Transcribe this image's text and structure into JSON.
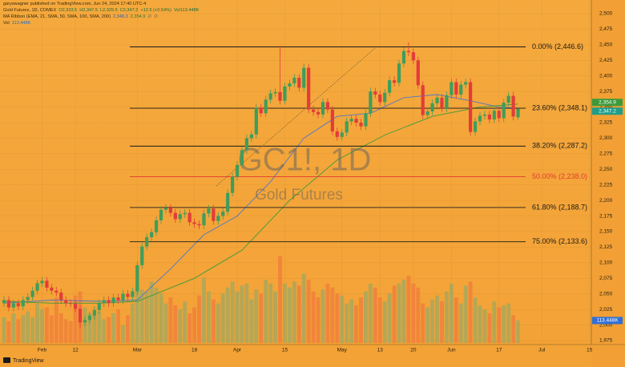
{
  "header": {
    "publisher": "garyswagner published on TradingView.com, Jun 24, 2024 17:40 UTC-4",
    "legend": [
      "Gold Futures, 1D, COMEX",
      "O2,333.5",
      "H2,347.5",
      "L2,329.5",
      "C2,347.2",
      "+12.5 (+0.54%)",
      "Vol113.448K"
    ],
    "ma_legend": [
      "MA Ribbon (EMA, 21, SMA, 50, SMA, 100, SMA, 200)",
      "2,348.3",
      "2,354.9",
      "∅",
      "∅"
    ],
    "vol_legend": [
      "Vol",
      "113.448K"
    ]
  },
  "footer": {
    "brand": "TradingView"
  },
  "chart_data": {
    "type": "candlestick",
    "watermark": "GC1!, 1D",
    "subtitle": "Gold Futures",
    "up_color": "#3f9d5c",
    "down_color": "#e23d3a",
    "open": [
      2035,
      2040,
      2028,
      2035,
      2030,
      2040,
      2045,
      2055,
      2067,
      2071,
      2060,
      2055,
      2052,
      2040,
      2035,
      2034,
      2026,
      2004,
      2008,
      2015,
      2024,
      2035,
      2040,
      2035,
      2044,
      2040,
      2050,
      2045,
      2054,
      2096,
      2126,
      2141,
      2149,
      2168,
      2185,
      2188,
      2180,
      2170,
      2178,
      2180,
      2165,
      2162,
      2160,
      2179,
      2187,
      2167,
      2175,
      2182,
      2212,
      2238,
      2257,
      2281,
      2300,
      2306,
      2349,
      2340,
      2362,
      2372,
      2374,
      2360,
      2383,
      2388,
      2397,
      2381,
      2413,
      2346,
      2342,
      2338,
      2358,
      2346,
      2311,
      2302,
      2309,
      2327,
      2331,
      2325,
      2319,
      2340,
      2375,
      2370,
      2358,
      2373,
      2393,
      2389,
      2420,
      2440,
      2438,
      2425,
      2385,
      2337,
      2343,
      2356,
      2365,
      2348,
      2369,
      2390,
      2370,
      2386,
      2390,
      2310,
      2327,
      2336,
      2338,
      2330,
      2344,
      2332,
      2357,
      2368,
      2333.5
    ],
    "high": [
      2046,
      2046,
      2041,
      2041,
      2046,
      2051,
      2061,
      2073,
      2077,
      2077,
      2066,
      2061,
      2058,
      2046,
      2041,
      2040,
      2032,
      2014,
      2021,
      2030,
      2041,
      2046,
      2046,
      2050,
      2050,
      2056,
      2056,
      2060,
      2102,
      2132,
      2147,
      2155,
      2174,
      2191,
      2194,
      2194,
      2186,
      2184,
      2186,
      2186,
      2171,
      2168,
      2185,
      2193,
      2193,
      2181,
      2188,
      2218,
      2244,
      2263,
      2287,
      2306,
      2312,
      2355,
      2355,
      2368,
      2378,
      2380,
      2448,
      2389,
      2394,
      2403,
      2403,
      2420,
      2419,
      2352,
      2348,
      2364,
      2364,
      2352,
      2317,
      2315,
      2333,
      2337,
      2337,
      2331,
      2346,
      2381,
      2381,
      2376,
      2379,
      2399,
      2399,
      2426,
      2446,
      2454,
      2444,
      2431,
      2391,
      2349,
      2362,
      2371,
      2371,
      2375,
      2396,
      2396,
      2392,
      2396,
      2396,
      2333,
      2342,
      2344,
      2344,
      2350,
      2350,
      2363,
      2374,
      2374,
      2347.5
    ],
    "low": [
      2029,
      2022,
      2022,
      2024,
      2024,
      2034,
      2039,
      2049,
      2061,
      2054,
      2049,
      2046,
      2034,
      2029,
      2028,
      2020,
      1995,
      1998,
      2002,
      2009,
      2018,
      2029,
      2029,
      2029,
      2034,
      2034,
      2039,
      2039,
      2048,
      2090,
      2120,
      2135,
      2143,
      2162,
      2179,
      2174,
      2164,
      2164,
      2172,
      2159,
      2156,
      2154,
      2154,
      2173,
      2161,
      2161,
      2169,
      2176,
      2206,
      2232,
      2251,
      2275,
      2294,
      2300,
      2334,
      2334,
      2356,
      2366,
      2354,
      2354,
      2377,
      2382,
      2375,
      2375,
      2340,
      2336,
      2332,
      2332,
      2340,
      2305,
      2296,
      2296,
      2303,
      2321,
      2319,
      2313,
      2313,
      2334,
      2364,
      2352,
      2352,
      2367,
      2383,
      2383,
      2414,
      2432,
      2419,
      2379,
      2331,
      2331,
      2337,
      2350,
      2342,
      2342,
      2363,
      2364,
      2364,
      2380,
      2304,
      2304,
      2321,
      2330,
      2324,
      2324,
      2326,
      2326,
      2351,
      2328.7,
      2329.5
    ],
    "close": [
      2040,
      2028,
      2035,
      2030,
      2040,
      2045,
      2055,
      2067,
      2071,
      2060,
      2055,
      2052,
      2040,
      2035,
      2034,
      2026,
      2004,
      2008,
      2015,
      2024,
      2035,
      2040,
      2035,
      2044,
      2040,
      2050,
      2045,
      2054,
      2096,
      2126,
      2141,
      2149,
      2168,
      2185,
      2188,
      2180,
      2170,
      2178,
      2180,
      2165,
      2162,
      2160,
      2179,
      2187,
      2167,
      2175,
      2182,
      2212,
      2238,
      2257,
      2281,
      2300,
      2306,
      2349,
      2340,
      2362,
      2372,
      2374,
      2360,
      2383,
      2388,
      2397,
      2381,
      2413,
      2346,
      2342,
      2338,
      2358,
      2346,
      2311,
      2302,
      2309,
      2327,
      2331,
      2325,
      2319,
      2340,
      2375,
      2370,
      2358,
      2373,
      2393,
      2389,
      2420,
      2440,
      2438,
      2425,
      2385,
      2337,
      2343,
      2356,
      2365,
      2348,
      2369,
      2390,
      2370,
      2386,
      2390,
      2310,
      2327,
      2336,
      2338,
      2330,
      2344,
      2332,
      2357,
      2368,
      2334.7,
      2347.2
    ],
    "volume": {
      "up_color": "#a8a85c",
      "down_color": "#f0803c",
      "lim": [
        0,
        1734
      ],
      "values": [
        130,
        110,
        150,
        120,
        140,
        160,
        130,
        200,
        170,
        180,
        140,
        230,
        150,
        120,
        110,
        240,
        260,
        180,
        150,
        140,
        160,
        120,
        130,
        150,
        170,
        90,
        140,
        200,
        300,
        270,
        260,
        310,
        280,
        250,
        200,
        230,
        190,
        170,
        210,
        150,
        180,
        240,
        330,
        260,
        220,
        200,
        250,
        280,
        310,
        260,
        290,
        300,
        220,
        270,
        250,
        320,
        300,
        260,
        440,
        300,
        280,
        310,
        290,
        350,
        320,
        260,
        230,
        270,
        300,
        280,
        250,
        240,
        200,
        220,
        190,
        230,
        260,
        300,
        280,
        230,
        210,
        250,
        290,
        300,
        320,
        340,
        300,
        280,
        200,
        180,
        220,
        240,
        210,
        260,
        300,
        230,
        200,
        290,
        310,
        230,
        190,
        170,
        150,
        210,
        180,
        190,
        200,
        140,
        113.448
      ],
      "tag": {
        "value": 113.448,
        "label": "113.448K",
        "color": "#2f6fd6"
      }
    },
    "moving_averages": [
      {
        "color": "#4f78c8",
        "x": [
          0,
          10,
          20,
          28,
          35,
          42,
          49,
          56,
          63,
          70,
          77,
          84,
          91,
          98,
          104,
          108
        ],
        "values": [
          2035,
          2040,
          2038,
          2040,
          2090,
          2145,
          2175,
          2230,
          2300,
          2335,
          2340,
          2365,
          2370,
          2360,
          2350,
          2348.3
        ]
      },
      {
        "color": "#3c9a3c",
        "x": [
          0,
          10,
          20,
          28,
          40,
          50,
          60,
          70,
          80,
          90,
          100,
          108
        ],
        "values": [
          2038,
          2035,
          2035,
          2038,
          2075,
          2120,
          2200,
          2265,
          2305,
          2335,
          2350,
          2354.9
        ]
      }
    ],
    "fibonacci": [
      {
        "value": 2446.6,
        "label": "0.00% (2,446.6)",
        "color": "#1a1a1a"
      },
      {
        "value": 2348.1,
        "label": "23.60% (2,348.1)",
        "color": "#1a1a1a"
      },
      {
        "value": 2287.2,
        "label": "38.20% (2,287.2)",
        "color": "#1a1a1a"
      },
      {
        "value": 2238.0,
        "label": "50.00% (2,238.0)",
        "color": "#e53935"
      },
      {
        "value": 2188.7,
        "label": "61.80% (2,188.7)",
        "color": "#1a1a1a"
      },
      {
        "value": 2133.6,
        "label": "75.00% (2,133.6)",
        "color": "#1a1a1a"
      }
    ],
    "price_tags": [
      {
        "value": 2354.9,
        "label": "2,354.9",
        "color": "#3c9a3c"
      },
      {
        "value": 2347.2,
        "label": "2,347.2",
        "color": "#1f9e8a"
      }
    ],
    "xlim": [
      -0.84,
      123.4
    ],
    "xticks": [
      {
        "value": 8,
        "label": "Feb"
      },
      {
        "value": 15,
        "label": "12"
      },
      {
        "value": 28,
        "label": "Mar"
      },
      {
        "value": 40,
        "label": "18"
      },
      {
        "value": 49,
        "label": "Apr"
      },
      {
        "value": 59,
        "label": "15"
      },
      {
        "value": 71,
        "label": "May"
      },
      {
        "value": 79,
        "label": "13"
      },
      {
        "value": 86,
        "label": "20"
      },
      {
        "value": 94,
        "label": "Jun"
      },
      {
        "value": 104,
        "label": "17"
      },
      {
        "value": 113,
        "label": "Jul"
      },
      {
        "value": 123,
        "label": "15"
      }
    ],
    "ylim": [
      1971.1,
      2521.9
    ],
    "yticks": [
      {
        "value": 1975,
        "label": "1,975"
      },
      {
        "value": 2000,
        "label": "2,000"
      },
      {
        "value": 2025,
        "label": "2,025"
      },
      {
        "value": 2050,
        "label": "2,050"
      },
      {
        "value": 2075,
        "label": "2,075"
      },
      {
        "value": 2100,
        "label": "2,100"
      },
      {
        "value": 2125,
        "label": "2,125"
      },
      {
        "value": 2150,
        "label": "2,150"
      },
      {
        "value": 2175,
        "label": "2,175"
      },
      {
        "value": 2200,
        "label": "2,200"
      },
      {
        "value": 2225,
        "label": "2,225"
      },
      {
        "value": 2250,
        "label": "2,250"
      },
      {
        "value": 2275,
        "label": "2,275"
      },
      {
        "value": 2300,
        "label": "2,300"
      },
      {
        "value": 2325,
        "label": "2,325"
      },
      {
        "value": 2350,
        "label": "2,350"
      },
      {
        "value": 2375,
        "label": "2,375"
      },
      {
        "value": 2400,
        "label": "2,400"
      },
      {
        "value": 2425,
        "label": "2,425"
      },
      {
        "value": 2450,
        "label": "2,450"
      },
      {
        "value": 2475,
        "label": "2,475"
      },
      {
        "value": 2500,
        "label": "2,500"
      }
    ],
    "grid": true
  }
}
